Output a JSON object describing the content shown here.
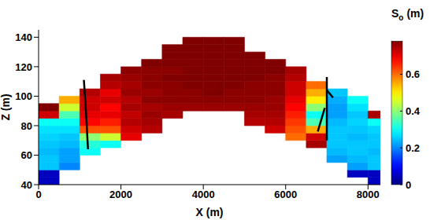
{
  "chart_data": {
    "type": "heatmap",
    "x_label": "X (m)",
    "y_label": "Z (m)",
    "xlim": [
      0,
      8300
    ],
    "ylim": [
      40,
      145
    ],
    "xticks": [
      0,
      2000,
      4000,
      6000,
      8000
    ],
    "yticks": [
      40,
      60,
      80,
      100,
      120,
      140
    ],
    "grid": false,
    "x_edges": [
      0,
      500,
      1000,
      1500,
      2000,
      2500,
      3000,
      3500,
      4000,
      4500,
      5000,
      5500,
      6000,
      6500,
      7000,
      7500,
      8000,
      8300
    ],
    "z_edges": [
      40,
      45,
      50,
      55,
      60,
      65,
      70,
      75,
      80,
      85,
      90,
      95,
      100,
      105,
      110,
      115,
      120,
      125,
      130,
      135,
      140
    ],
    "cells": [
      [
        0.05,
        null,
        null,
        null,
        null,
        null,
        null,
        null,
        null,
        null,
        null,
        null,
        null,
        null,
        null,
        null,
        0.05
      ],
      [
        0.05,
        null,
        null,
        null,
        null,
        null,
        null,
        null,
        null,
        null,
        null,
        null,
        null,
        null,
        null,
        0.05,
        0.05
      ],
      [
        0.25,
        0.2,
        null,
        null,
        null,
        null,
        null,
        null,
        null,
        null,
        null,
        null,
        null,
        null,
        null,
        0.22,
        0.25
      ],
      [
        0.25,
        0.22,
        null,
        null,
        null,
        null,
        null,
        null,
        null,
        null,
        null,
        null,
        null,
        null,
        0.22,
        0.24,
        0.25
      ],
      [
        0.24,
        0.22,
        0.3,
        null,
        null,
        null,
        null,
        null,
        null,
        null,
        null,
        null,
        null,
        null,
        0.24,
        0.25,
        0.24
      ],
      [
        0.25,
        0.24,
        0.32,
        0.3,
        null,
        null,
        null,
        null,
        null,
        null,
        null,
        null,
        null,
        0.75,
        0.25,
        0.25,
        0.25
      ],
      [
        0.26,
        0.25,
        0.4,
        0.45,
        0.7,
        null,
        null,
        null,
        null,
        null,
        null,
        null,
        0.6,
        0.72,
        0.25,
        0.24,
        0.25
      ],
      [
        0.27,
        0.27,
        0.62,
        0.62,
        0.72,
        0.74,
        null,
        null,
        null,
        null,
        null,
        0.72,
        0.62,
        0.55,
        0.25,
        0.25,
        0.26
      ],
      [
        0.3,
        0.3,
        0.68,
        0.66,
        0.74,
        0.75,
        null,
        null,
        null,
        null,
        0.74,
        0.74,
        0.64,
        0.35,
        0.24,
        0.26,
        0.3
      ],
      [
        0.72,
        0.35,
        0.7,
        0.7,
        0.73,
        0.76,
        0.75,
        null,
        null,
        null,
        0.75,
        0.75,
        0.66,
        0.3,
        0.22,
        0.25,
        0.75
      ],
      [
        0.78,
        0.45,
        0.72,
        0.68,
        0.75,
        0.75,
        0.76,
        0.76,
        0.76,
        0.76,
        0.76,
        0.76,
        0.68,
        0.4,
        0.22,
        0.27,
        null
      ],
      [
        null,
        0.55,
        0.72,
        0.72,
        0.74,
        0.77,
        0.77,
        0.77,
        0.77,
        0.77,
        0.77,
        0.76,
        0.7,
        0.5,
        0.23,
        0.3,
        null
      ],
      [
        null,
        null,
        0.74,
        0.7,
        0.76,
        0.76,
        0.77,
        0.77,
        0.78,
        0.77,
        0.77,
        0.77,
        0.72,
        0.55,
        0.25,
        null,
        null
      ],
      [
        null,
        null,
        null,
        0.74,
        0.75,
        0.77,
        0.77,
        0.78,
        0.78,
        0.78,
        0.77,
        0.77,
        0.72,
        0.6,
        null,
        null,
        null
      ],
      [
        null,
        null,
        null,
        0.75,
        0.76,
        0.77,
        0.78,
        0.78,
        0.78,
        0.78,
        0.78,
        0.77,
        0.74,
        null,
        null,
        null,
        null
      ],
      [
        null,
        null,
        null,
        null,
        0.77,
        0.77,
        0.77,
        0.78,
        0.78,
        0.78,
        0.78,
        0.78,
        0.75,
        null,
        null,
        null,
        null
      ],
      [
        null,
        null,
        null,
        null,
        null,
        0.78,
        0.78,
        0.78,
        0.78,
        0.78,
        0.78,
        0.78,
        null,
        null,
        null,
        null,
        null
      ],
      [
        null,
        null,
        null,
        null,
        null,
        null,
        0.78,
        0.78,
        0.78,
        0.78,
        0.78,
        null,
        null,
        null,
        null,
        null,
        null
      ],
      [
        null,
        null,
        null,
        null,
        null,
        null,
        0.78,
        0.78,
        0.78,
        0.78,
        null,
        null,
        null,
        null,
        null,
        null,
        null
      ],
      [
        null,
        null,
        null,
        null,
        null,
        null,
        null,
        0.78,
        0.78,
        0.78,
        null,
        null,
        null,
        null,
        null,
        null,
        null
      ]
    ],
    "colorbar": {
      "label": {
        "symbol": "S",
        "subscript": "o",
        "unit": "(m)"
      },
      "range": [
        0,
        0.78
      ],
      "ticks": [
        0,
        0.2,
        0.4,
        0.6
      ]
    },
    "lines": [
      {
        "color": "#000000",
        "points": [
          [
            1100,
            111
          ],
          [
            1150,
            90
          ],
          [
            1200,
            64
          ]
        ]
      },
      {
        "color": "#000000",
        "points": [
          [
            7000,
            113
          ],
          [
            7000,
            70
          ]
        ]
      },
      {
        "color": "#000000",
        "points": [
          [
            7000,
            104
          ],
          [
            7150,
            99
          ]
        ]
      },
      {
        "color": "#000000",
        "points": [
          [
            6780,
            76
          ],
          [
            6950,
            92
          ]
        ]
      }
    ]
  }
}
